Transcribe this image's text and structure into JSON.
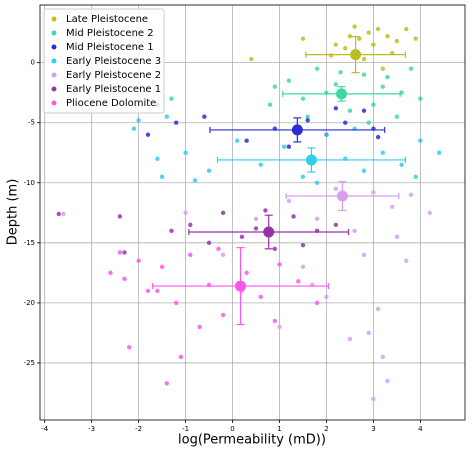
{
  "chart_data": {
    "type": "scatter",
    "xlabel": "log(Permeability (mD))",
    "ylabel": "Depth (m)",
    "xlim": [
      -4.1,
      4.95
    ],
    "ylim": [
      -29.75,
      4.8
    ],
    "xticks": [
      -4,
      -3,
      -2,
      -1,
      0,
      1,
      2,
      3,
      4
    ],
    "yticks": [
      0,
      -5,
      -10,
      -15,
      -20,
      -25
    ],
    "grid": true,
    "legend": "upper left",
    "series": [
      {
        "name": "Late Pleistocene",
        "color": "#bcbd22",
        "x": [
          1.5,
          2.1,
          2.4,
          2.6,
          2.7,
          2.9,
          3.0,
          3.1,
          3.3,
          3.5,
          3.7,
          3.9,
          2.2,
          2.8,
          3.4,
          0.4,
          2.5,
          3.2
        ],
        "y": [
          2.0,
          0.6,
          1.2,
          3.0,
          2.0,
          2.5,
          1.5,
          2.8,
          2.2,
          1.8,
          2.8,
          2.0,
          1.5,
          0.3,
          0.8,
          0.3,
          2.2,
          -0.5
        ],
        "mean": {
          "x": 2.62,
          "y": 0.67,
          "xerr": 1.06,
          "yerr": 1.5
        }
      },
      {
        "name": "Mid Pleistocene 2",
        "color": "#3fd9a0",
        "x": [
          0.9,
          1.2,
          1.5,
          1.8,
          2.0,
          2.2,
          2.5,
          2.8,
          3.0,
          3.2,
          3.5,
          3.8,
          4.0,
          1.6,
          2.3,
          2.9,
          3.3,
          -1.3,
          0.8,
          3.6
        ],
        "y": [
          -2.0,
          -1.5,
          -3.0,
          -0.5,
          -2.5,
          -1.8,
          -4.0,
          -1.0,
          -3.5,
          -2.0,
          -4.5,
          -0.5,
          -3.0,
          -4.5,
          -0.8,
          -5.0,
          -1.2,
          -3.0,
          -3.5,
          -2.5
        ],
        "mean": {
          "x": 2.32,
          "y": -2.6,
          "xerr": 1.25,
          "yerr": 0.6
        }
      },
      {
        "name": "Mid Pleistocene 1",
        "color": "#2b2bd9",
        "x": [
          -1.8,
          -1.2,
          -0.6,
          0.3,
          0.9,
          1.6,
          2.0,
          2.4,
          2.8,
          3.1,
          -1.6,
          1.2,
          2.2,
          3.0
        ],
        "y": [
          -6.0,
          -5.0,
          -4.5,
          -6.5,
          -5.5,
          -4.8,
          -6.0,
          -5.0,
          -4.0,
          -6.2,
          -3.5,
          -7.0,
          -3.8,
          -5.5
        ],
        "mean": {
          "x": 1.38,
          "y": -5.6,
          "xerr": 1.86,
          "yerr": 1.0
        }
      },
      {
        "name": "Early Pleistocene 3",
        "color": "#30cdee",
        "x": [
          -2.1,
          -1.6,
          -1.5,
          -1.0,
          -0.5,
          0.1,
          0.6,
          1.1,
          1.5,
          2.0,
          2.4,
          2.8,
          3.2,
          3.6,
          4.0,
          4.4,
          -1.4,
          -0.8,
          1.8,
          2.6,
          3.9,
          -2.0
        ],
        "y": [
          -5.5,
          -8.0,
          -9.5,
          -7.5,
          -9.0,
          -6.5,
          -8.5,
          -7.0,
          -9.5,
          -6.0,
          -8.0,
          -9.0,
          -7.5,
          -8.5,
          -6.5,
          -7.5,
          -4.5,
          -9.8,
          -10.0,
          -5.5,
          -9.5,
          -4.8
        ],
        "mean": {
          "x": 1.68,
          "y": -8.1,
          "xerr": 2.0,
          "yerr": 1.0
        }
      },
      {
        "name": "Early Pleistocene 2",
        "color": "#d79ff0",
        "x": [
          -3.6,
          -1.0,
          -0.2,
          0.5,
          1.2,
          1.8,
          2.2,
          2.6,
          3.0,
          3.4,
          3.8,
          4.2,
          1.5,
          2.0,
          2.8,
          3.1,
          2.5,
          3.3,
          1.0,
          0.2,
          3.5,
          3.2,
          3.0,
          2.9,
          1.7,
          3.7
        ],
        "y": [
          -12.6,
          -12.5,
          -16.0,
          -13.0,
          -11.5,
          -13.0,
          -10.5,
          -14.0,
          -10.8,
          -12.0,
          -11.0,
          -12.5,
          -17.0,
          -19.5,
          -16.0,
          -20.5,
          -23.0,
          -26.5,
          -22.0,
          -19.0,
          -14.5,
          -24.5,
          -28.0,
          -22.5,
          -18.5,
          -16.5
        ],
        "mean": {
          "x": 2.34,
          "y": -11.1,
          "xerr": 1.2,
          "yerr": 1.2
        }
      },
      {
        "name": "Early Pleistocene 1",
        "color": "#9933aa",
        "x": [
          -3.7,
          -2.4,
          -1.3,
          -0.9,
          -0.5,
          -0.2,
          0.2,
          0.5,
          0.9,
          1.3,
          1.8,
          2.2,
          -2.3,
          0.7,
          1.5
        ],
        "y": [
          -12.6,
          -12.8,
          -14.0,
          -13.5,
          -15.0,
          -12.5,
          -14.5,
          -13.8,
          -15.5,
          -12.8,
          -14.0,
          -13.5,
          -15.8,
          -12.3,
          -15.2
        ],
        "mean": {
          "x": 0.77,
          "y": -14.1,
          "xerr": 1.7,
          "yerr": 1.4
        }
      },
      {
        "name": "Pliocene Dolomite",
        "color": "#ff55ee",
        "x": [
          -2.6,
          -2.3,
          -2.0,
          -1.8,
          -1.5,
          -1.2,
          -0.9,
          -0.5,
          -0.2,
          0.3,
          0.6,
          1.0,
          1.4,
          1.8,
          -2.2,
          -1.6,
          -1.1,
          -0.3,
          -2.4,
          -1.4,
          -0.7,
          0.9
        ],
        "y": [
          -17.5,
          -18.0,
          -16.5,
          -19.0,
          -17.0,
          -20.0,
          -16.0,
          -18.5,
          -21.0,
          -17.5,
          -19.5,
          -16.8,
          -18.2,
          -20.0,
          -23.7,
          -19.0,
          -24.5,
          -15.5,
          -15.8,
          -26.7,
          -22.0,
          -21.5
        ],
        "mean": {
          "x": 0.17,
          "y": -18.6,
          "xerr": 1.87,
          "yerr": 3.2
        }
      }
    ]
  }
}
